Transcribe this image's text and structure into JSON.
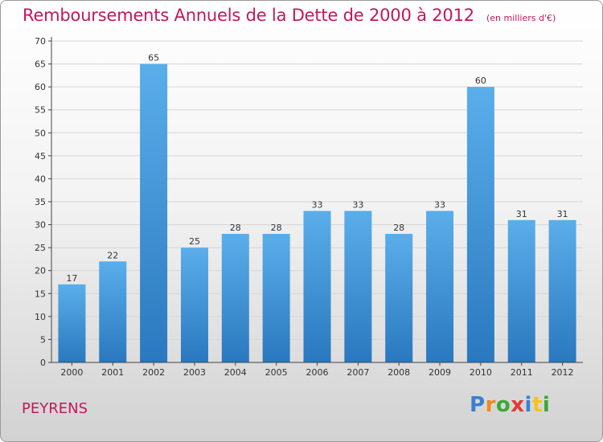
{
  "header": {
    "title": "Remboursements Annuels de la Dette de 2000 à 2012",
    "subtitle": "(en milliers d'€)"
  },
  "footer": {
    "commune": "PEYRENS",
    "brand_letters": [
      {
        "char": "P",
        "color": "#3b7fd0"
      },
      {
        "char": "r",
        "color": "#f08a1c"
      },
      {
        "char": "o",
        "color": "#3aa935"
      },
      {
        "char": "x",
        "color": "#e53935"
      },
      {
        "char": "i",
        "color": "#3b7fd0"
      },
      {
        "char": "t",
        "color": "#f6c21a"
      },
      {
        "char": "i",
        "color": "#3aa935"
      }
    ]
  },
  "colors": {
    "title": "#c2185b",
    "bar_top": "#5aaeea",
    "bar_bottom": "#2a78bf",
    "grid": "#d6d6d6",
    "axis": "#444444"
  },
  "chart_data": {
    "type": "bar",
    "title": "Remboursements Annuels de la Dette de 2000 à 2012",
    "subtitle": "(en milliers d'€)",
    "categories": [
      "2000",
      "2001",
      "2002",
      "2003",
      "2004",
      "2005",
      "2006",
      "2007",
      "2008",
      "2009",
      "2010",
      "2011",
      "2012"
    ],
    "values": [
      17,
      22,
      65,
      25,
      28,
      28,
      33,
      33,
      28,
      33,
      60,
      31,
      31
    ],
    "ylim": [
      0,
      70
    ],
    "yticks": [
      0,
      5,
      10,
      15,
      20,
      25,
      30,
      35,
      40,
      45,
      50,
      55,
      60,
      65,
      70
    ],
    "grid": true,
    "data_labels": true
  }
}
